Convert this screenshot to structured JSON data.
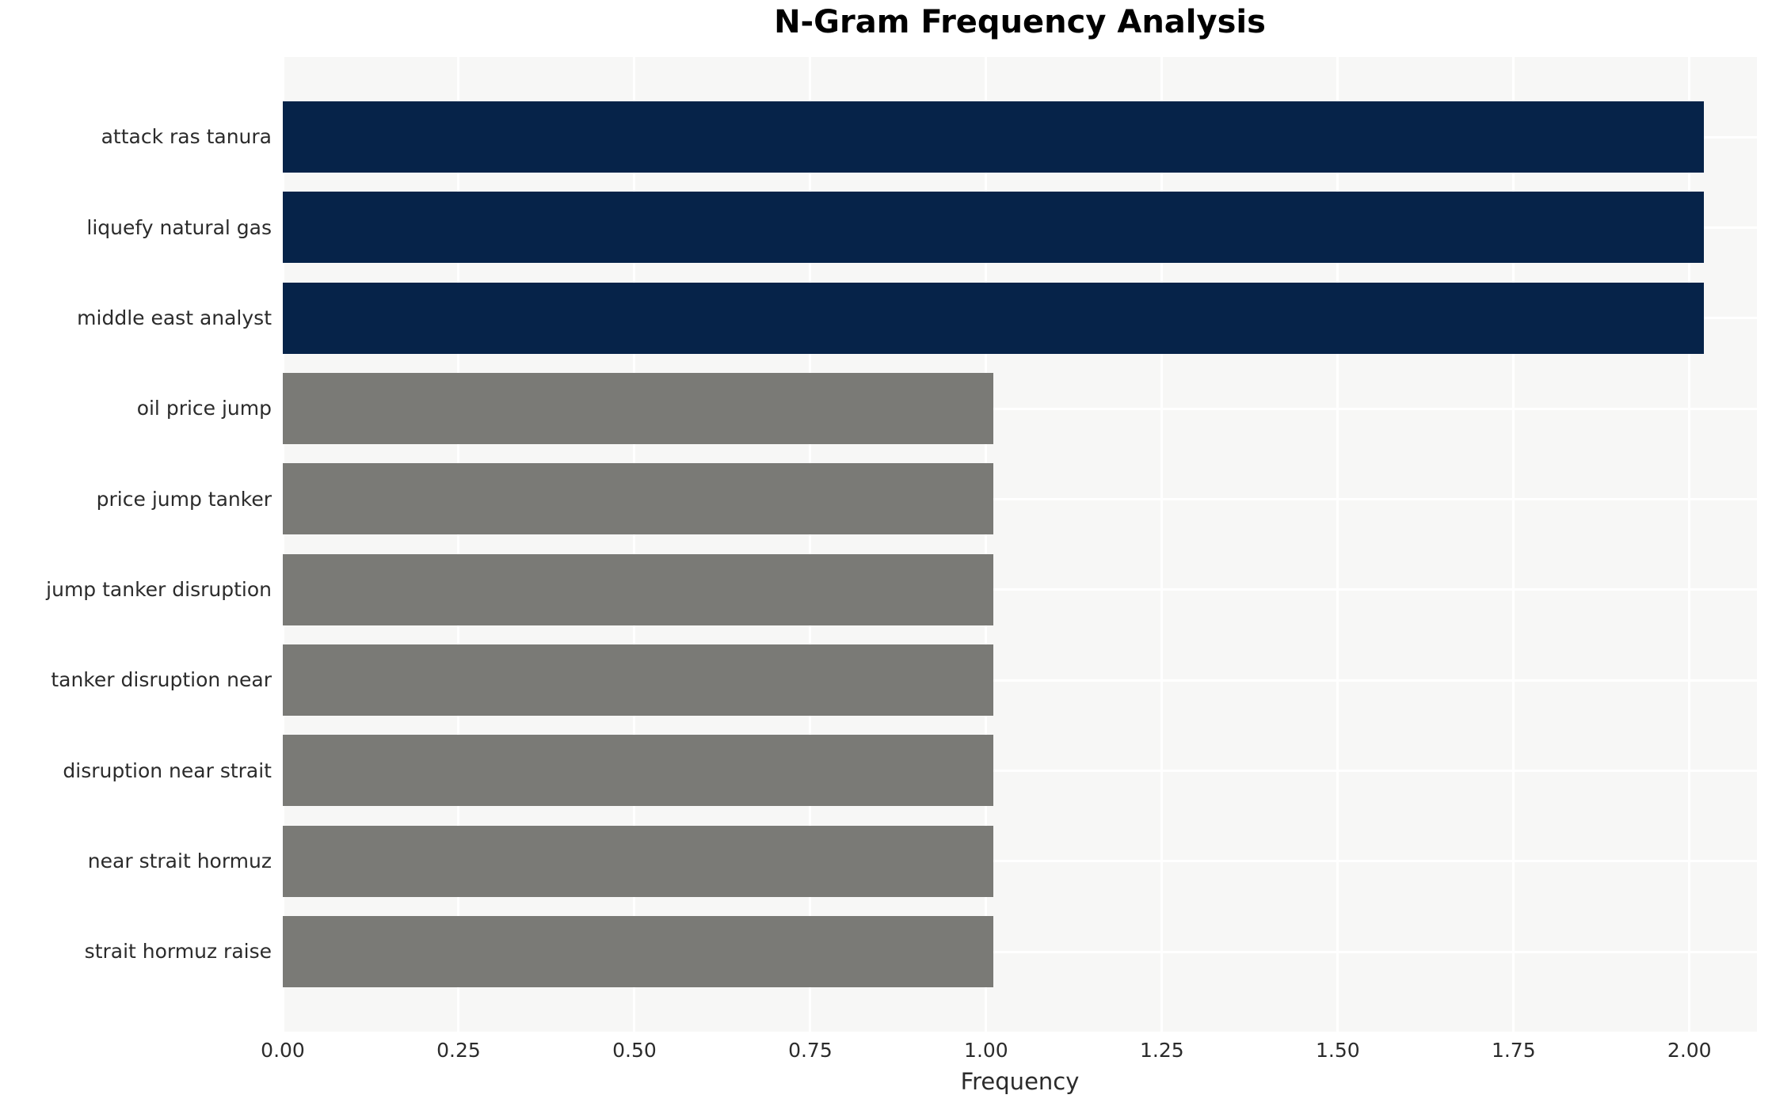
{
  "chart_data": {
    "type": "bar",
    "orientation": "horizontal",
    "title": "N-Gram Frequency Analysis",
    "xlabel": "Frequency",
    "ylabel": "",
    "categories": [
      "attack ras tanura",
      "liquefy natural gas",
      "middle east analyst",
      "oil price jump",
      "price jump tanker",
      "jump tanker disruption",
      "tanker disruption near",
      "disruption near strait",
      "near strait hormuz",
      "strait hormuz raise"
    ],
    "values": [
      2,
      2,
      2,
      1,
      1,
      1,
      1,
      1,
      1,
      1
    ],
    "bar_colors": [
      "navy",
      "navy",
      "navy",
      "gray",
      "gray",
      "gray",
      "gray",
      "gray",
      "gray",
      "gray"
    ],
    "x_ticks": [
      0.0,
      0.25,
      0.5,
      0.75,
      1.0,
      1.25,
      1.5,
      1.75,
      2.0
    ],
    "x_tick_labels": [
      "0.00",
      "0.25",
      "0.50",
      "0.75",
      "1.00",
      "1.25",
      "1.50",
      "1.75",
      "2.00"
    ],
    "xlim": [
      0,
      2.096
    ],
    "grid": true,
    "legend": false
  },
  "colors": {
    "navy": "#062349",
    "gray": "#7a7a76",
    "plot_bg": "#f7f7f6",
    "grid": "#ffffff",
    "text": "#2b2b2b",
    "title_text": "#000000",
    "page_bg": "#ffffff"
  }
}
